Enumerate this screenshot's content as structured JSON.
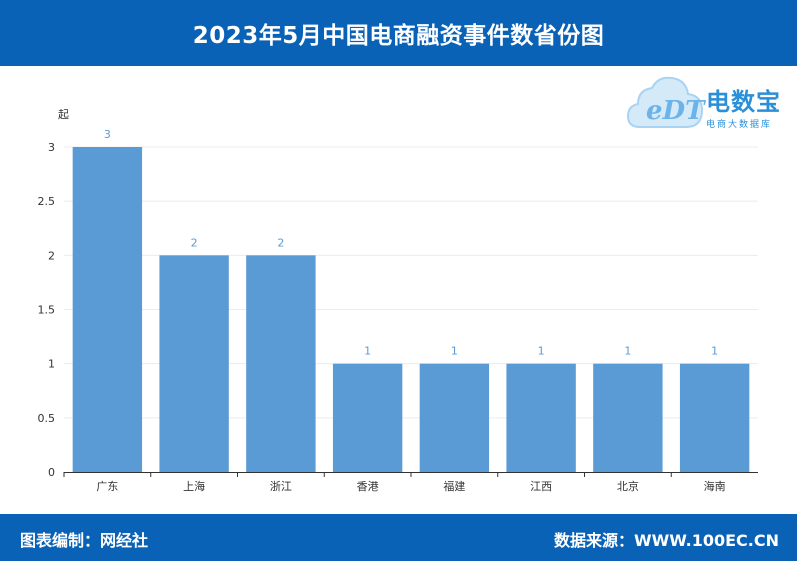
{
  "header": {
    "title": "2023年5月中国电商融资事件数省份图"
  },
  "footer": {
    "left": "图表编制：网经社",
    "right": "数据来源：WWW.100EC.CN"
  },
  "logo": {
    "mark": "eDT",
    "title": "电数宝",
    "subtitle": "电商大数据库"
  },
  "colors": {
    "bar": "#5b9bd5",
    "header_bg": "#0a62b6",
    "label": "#5b9bd5"
  },
  "chart_data": {
    "type": "bar",
    "title": "2023年5月中国电商融资事件数省份图",
    "ylabel": "起",
    "xlabel": "",
    "categories": [
      "广东",
      "上海",
      "浙江",
      "香港",
      "福建",
      "江西",
      "北京",
      "海南"
    ],
    "values": [
      3,
      2,
      2,
      1,
      1,
      1,
      1,
      1
    ],
    "ylim": [
      0,
      3
    ],
    "yticks": [
      "0",
      "0.5",
      "1",
      "1.5",
      "2",
      "2.5",
      "3"
    ],
    "grid": true
  }
}
